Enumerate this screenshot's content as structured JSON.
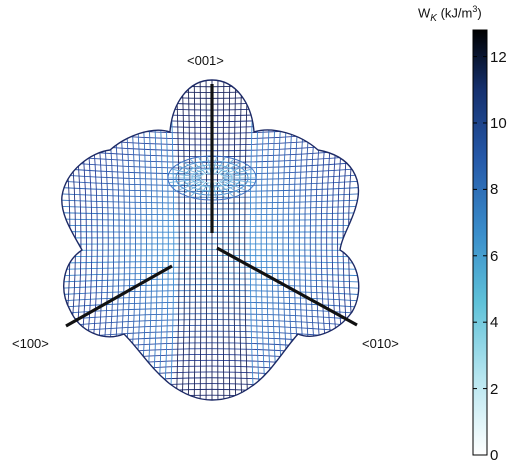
{
  "axes": {
    "z_label": "<001>",
    "x_label": "<100>",
    "y_label": "<010>"
  },
  "colorbar": {
    "symbol": "W",
    "subscript": "K",
    "unit_open": "(kJ/m",
    "unit_power": "3",
    "unit_close": ")",
    "ticks": [
      "0",
      "2",
      "4",
      "6",
      "8",
      "10",
      "12"
    ],
    "tick_values": [
      0,
      2,
      4,
      6,
      8,
      10,
      12
    ],
    "range": [
      0,
      12.8
    ],
    "colors": [
      "#ffffff",
      "#b7e6f0",
      "#5ec1d8",
      "#3a8ecb",
      "#2558a8",
      "#15306e",
      "#000000"
    ]
  }
}
